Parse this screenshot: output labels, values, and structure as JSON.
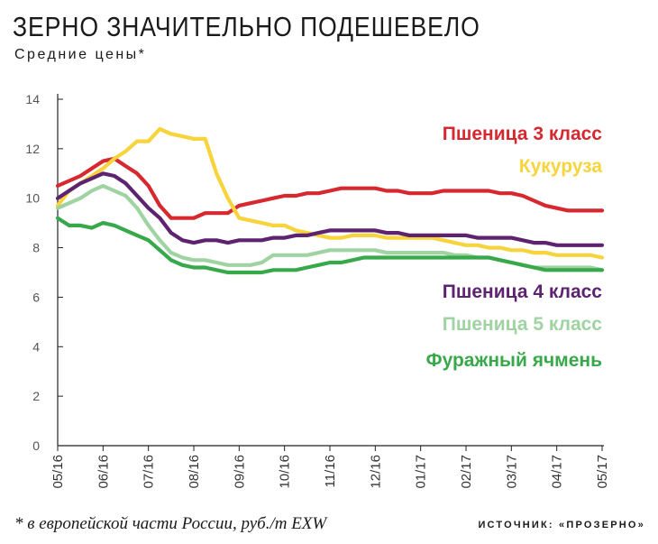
{
  "header": {
    "title": "ЗЕРНО ЗНАЧИТЕЛЬНО ПОДЕШЕВЕЛО",
    "subtitle": "Средние цены*"
  },
  "footer": {
    "footnote": "* в европейской части России, руб./т EXW",
    "source": "ИСТОЧНИК: «ПРОЗЕРНО»"
  },
  "chart_data": {
    "type": "line",
    "title": "ЗЕРНО ЗНАЧИТЕЛЬНО ПОДЕШЕВЕЛО",
    "subtitle": "Средние цены*",
    "xlabel": "",
    "ylabel": "",
    "categories": [
      "05/16",
      "06/16",
      "07/16",
      "08/16",
      "09/16",
      "10/16",
      "11/16",
      "12/16",
      "01/17",
      "02/17",
      "03/17",
      "04/17",
      "05/17"
    ],
    "ylim": [
      0,
      14
    ],
    "yticks": [
      0,
      2,
      4,
      6,
      8,
      10,
      12,
      14
    ],
    "grid": false,
    "legend": "right, inline labels",
    "series": [
      {
        "name": "Пшеница 3 класс",
        "color": "#d7282f",
        "x": [
          0,
          0.25,
          0.5,
          0.75,
          1,
          1.25,
          1.5,
          1.75,
          2,
          2.25,
          2.5,
          2.75,
          3,
          3.25,
          3.5,
          3.75,
          4,
          4.25,
          4.5,
          4.75,
          5,
          5.25,
          5.5,
          5.75,
          6,
          6.25,
          6.5,
          6.75,
          7,
          7.25,
          7.5,
          7.75,
          8,
          8.25,
          8.5,
          8.75,
          9,
          9.25,
          9.5,
          9.75,
          10,
          10.25,
          10.5,
          10.75,
          11,
          11.25,
          11.5,
          11.75,
          12
        ],
        "values": [
          10.5,
          10.7,
          10.9,
          11.2,
          11.5,
          11.6,
          11.3,
          11.0,
          10.5,
          9.7,
          9.2,
          9.2,
          9.2,
          9.4,
          9.4,
          9.4,
          9.7,
          9.8,
          9.9,
          10.0,
          10.1,
          10.1,
          10.2,
          10.2,
          10.3,
          10.4,
          10.4,
          10.4,
          10.4,
          10.3,
          10.3,
          10.2,
          10.2,
          10.2,
          10.3,
          10.3,
          10.3,
          10.3,
          10.3,
          10.2,
          10.2,
          10.1,
          9.9,
          9.7,
          9.6,
          9.5,
          9.5,
          9.5,
          9.5
        ]
      },
      {
        "name": "Кукуруза",
        "color": "#f7d43c",
        "x": [
          0,
          0.25,
          0.5,
          0.75,
          1,
          1.25,
          1.5,
          1.75,
          2,
          2.25,
          2.5,
          2.75,
          3,
          3.25,
          3.5,
          3.75,
          4,
          4.25,
          4.5,
          4.75,
          5,
          5.25,
          5.5,
          5.75,
          6,
          6.25,
          6.5,
          6.75,
          7,
          7.25,
          7.5,
          7.75,
          8,
          8.25,
          8.5,
          8.75,
          9,
          9.25,
          9.5,
          9.75,
          10,
          10.25,
          10.5,
          10.75,
          11,
          11.25,
          11.5,
          11.75,
          12
        ],
        "values": [
          9.7,
          10.3,
          10.6,
          10.9,
          11.2,
          11.6,
          11.9,
          12.3,
          12.3,
          12.8,
          12.6,
          12.5,
          12.4,
          12.4,
          11.0,
          10.0,
          9.2,
          9.1,
          9.0,
          8.9,
          8.9,
          8.7,
          8.6,
          8.5,
          8.4,
          8.4,
          8.5,
          8.5,
          8.5,
          8.4,
          8.4,
          8.4,
          8.4,
          8.4,
          8.3,
          8.2,
          8.1,
          8.1,
          8.0,
          8.0,
          7.9,
          7.9,
          7.8,
          7.8,
          7.7,
          7.7,
          7.7,
          7.7,
          7.6
        ]
      },
      {
        "name": "Пшеница 4 класс",
        "color": "#5e2370",
        "x": [
          0,
          0.25,
          0.5,
          0.75,
          1,
          1.25,
          1.5,
          1.75,
          2,
          2.25,
          2.5,
          2.75,
          3,
          3.25,
          3.5,
          3.75,
          4,
          4.25,
          4.5,
          4.75,
          5,
          5.25,
          5.5,
          5.75,
          6,
          6.25,
          6.5,
          6.75,
          7,
          7.25,
          7.5,
          7.75,
          8,
          8.25,
          8.5,
          8.75,
          9,
          9.25,
          9.5,
          9.75,
          10,
          10.25,
          10.5,
          10.75,
          11,
          11.25,
          11.5,
          11.75,
          12
        ],
        "values": [
          10.0,
          10.3,
          10.6,
          10.8,
          11.0,
          10.9,
          10.6,
          10.1,
          9.6,
          9.2,
          8.6,
          8.3,
          8.2,
          8.3,
          8.3,
          8.2,
          8.3,
          8.3,
          8.3,
          8.4,
          8.4,
          8.5,
          8.5,
          8.6,
          8.7,
          8.7,
          8.7,
          8.7,
          8.7,
          8.6,
          8.6,
          8.5,
          8.5,
          8.5,
          8.5,
          8.5,
          8.5,
          8.4,
          8.4,
          8.4,
          8.4,
          8.3,
          8.2,
          8.2,
          8.1,
          8.1,
          8.1,
          8.1,
          8.1
        ]
      },
      {
        "name": "Пшеница 5 класс",
        "color": "#9fd3a2",
        "x": [
          0,
          0.25,
          0.5,
          0.75,
          1,
          1.25,
          1.5,
          1.75,
          2,
          2.25,
          2.5,
          2.75,
          3,
          3.25,
          3.5,
          3.75,
          4,
          4.25,
          4.5,
          4.75,
          5,
          5.25,
          5.5,
          5.75,
          6,
          6.25,
          6.5,
          6.75,
          7,
          7.25,
          7.5,
          7.75,
          8,
          8.25,
          8.5,
          8.75,
          9,
          9.25,
          9.5,
          9.75,
          10,
          10.25,
          10.5,
          10.75,
          11,
          11.25,
          11.5,
          11.75,
          12
        ],
        "values": [
          9.6,
          9.8,
          10.0,
          10.3,
          10.5,
          10.3,
          10.1,
          9.6,
          8.9,
          8.3,
          7.8,
          7.6,
          7.5,
          7.5,
          7.4,
          7.3,
          7.3,
          7.3,
          7.4,
          7.7,
          7.7,
          7.7,
          7.7,
          7.8,
          7.9,
          7.9,
          7.9,
          7.9,
          7.9,
          7.8,
          7.8,
          7.8,
          7.8,
          7.8,
          7.8,
          7.7,
          7.7,
          7.6,
          7.6,
          7.5,
          7.4,
          7.3,
          7.2,
          7.2,
          7.2,
          7.2,
          7.2,
          7.2,
          7.1
        ]
      },
      {
        "name": "Фуражный ячмень",
        "color": "#38a94a",
        "x": [
          0,
          0.25,
          0.5,
          0.75,
          1,
          1.25,
          1.5,
          1.75,
          2,
          2.25,
          2.5,
          2.75,
          3,
          3.25,
          3.5,
          3.75,
          4,
          4.25,
          4.5,
          4.75,
          5,
          5.25,
          5.5,
          5.75,
          6,
          6.25,
          6.5,
          6.75,
          7,
          7.25,
          7.5,
          7.75,
          8,
          8.25,
          8.5,
          8.75,
          9,
          9.25,
          9.5,
          9.75,
          10,
          10.25,
          10.5,
          10.75,
          11,
          11.25,
          11.5,
          11.75,
          12
        ],
        "values": [
          9.2,
          8.9,
          8.9,
          8.8,
          9.0,
          8.9,
          8.7,
          8.5,
          8.3,
          7.9,
          7.5,
          7.3,
          7.2,
          7.2,
          7.1,
          7.0,
          7.0,
          7.0,
          7.0,
          7.1,
          7.1,
          7.1,
          7.2,
          7.3,
          7.4,
          7.4,
          7.5,
          7.6,
          7.6,
          7.6,
          7.6,
          7.6,
          7.6,
          7.6,
          7.6,
          7.6,
          7.6,
          7.6,
          7.6,
          7.5,
          7.4,
          7.3,
          7.2,
          7.1,
          7.1,
          7.1,
          7.1,
          7.1,
          7.1
        ]
      }
    ]
  }
}
